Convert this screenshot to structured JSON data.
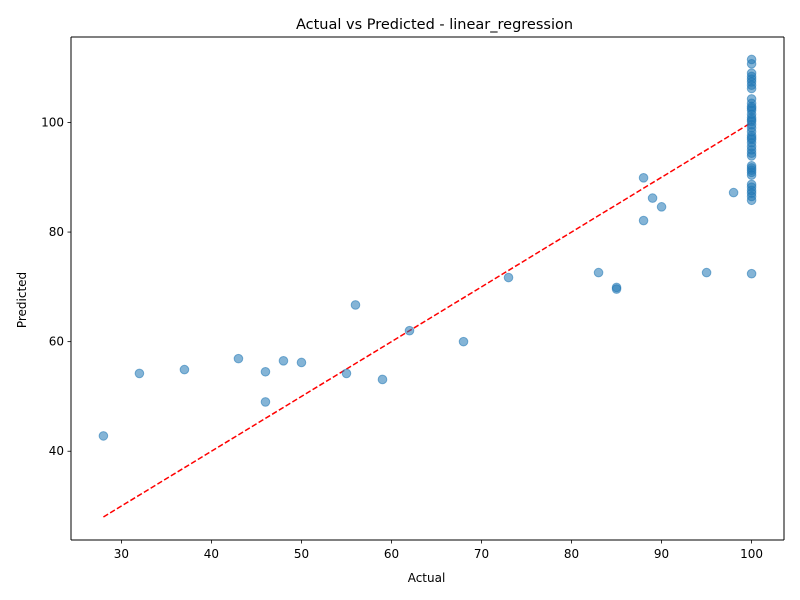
{
  "chart_data": {
    "type": "scatter",
    "title": "Actual vs Predicted - linear_regression",
    "xlabel": "Actual",
    "ylabel": "Predicted",
    "xlim": [
      24.4,
      103.6
    ],
    "ylim": [
      23.8,
      115.6
    ],
    "xticks": [
      30,
      40,
      50,
      60,
      70,
      80,
      90,
      100
    ],
    "yticks": [
      40,
      60,
      80,
      100
    ],
    "grid": false,
    "legend": "none",
    "colors": {
      "points": "#1f77b4",
      "reference_line": "#ff0000"
    },
    "reference_line": {
      "style": "dashed",
      "from": [
        28,
        28
      ],
      "to": [
        100,
        100
      ]
    },
    "series": [
      {
        "x": [
          28,
          32,
          37,
          43,
          46,
          46,
          48,
          50,
          55,
          56,
          59,
          62,
          68,
          73,
          83,
          85,
          85,
          88,
          88,
          89,
          90,
          95,
          98,
          100,
          100,
          100,
          100,
          100,
          100,
          100,
          100,
          100,
          100,
          100,
          100,
          100,
          100,
          100,
          100,
          100,
          100,
          100,
          100,
          100,
          100,
          100,
          100,
          100,
          100,
          100,
          100,
          100,
          100,
          100,
          100,
          100,
          100,
          100,
          100,
          100,
          100,
          100,
          100
        ],
        "y": [
          42.8,
          54.2,
          54.9,
          56.9,
          54.5,
          49.0,
          56.5,
          56.2,
          54.2,
          66.7,
          53.1,
          62.0,
          60.0,
          71.7,
          72.6,
          69.6,
          69.9,
          89.9,
          82.1,
          86.2,
          84.6,
          72.6,
          87.2,
          111.5,
          110.7,
          109.0,
          108.4,
          107.9,
          107.4,
          106.8,
          106.2,
          104.3,
          103.5,
          102.9,
          102.2,
          101.5,
          100.9,
          100.2,
          99.6,
          99.0,
          98.3,
          97.6,
          96.9,
          96.3,
          95.6,
          95.0,
          94.4,
          93.9,
          92.1,
          91.7,
          91.3,
          90.9,
          90.4,
          88.7,
          88.2,
          87.6,
          87.1,
          86.5,
          85.8,
          72.4,
          97.2,
          100.5,
          102.6
        ]
      }
    ]
  }
}
